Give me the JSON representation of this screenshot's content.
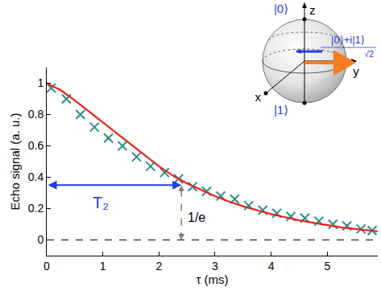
{
  "chart_data": {
    "type": "scatter",
    "x_label": "τ (ms)",
    "y_label": "Echo signal (a. u.)",
    "xlim": [
      0,
      5.9
    ],
    "ylim": [
      -0.1,
      1.1
    ],
    "xticks": [
      0,
      1,
      2,
      3,
      4,
      5
    ],
    "yticks": [
      0,
      0.2,
      0.4,
      0.6,
      0.8,
      1
    ],
    "grid": false,
    "baseline": 0,
    "series": [
      {
        "type": "scatter",
        "marker": "x",
        "color": "#2e8b8b",
        "x": [
          0.08,
          0.35,
          0.6,
          0.85,
          1.1,
          1.35,
          1.6,
          1.85,
          2.1,
          2.35,
          2.6,
          2.85,
          3.1,
          3.35,
          3.6,
          3.85,
          4.1,
          4.35,
          4.6,
          4.85,
          5.1,
          5.35,
          5.6,
          5.8
        ],
        "values": [
          0.97,
          0.9,
          0.8,
          0.72,
          0.65,
          0.6,
          0.53,
          0.47,
          0.43,
          0.39,
          0.34,
          0.31,
          0.28,
          0.26,
          0.22,
          0.19,
          0.17,
          0.15,
          0.14,
          0.12,
          0.1,
          0.09,
          0.07,
          0.06
        ]
      },
      {
        "type": "line",
        "line_style": "solid",
        "color": "#e8231c",
        "x": [
          0,
          0.25,
          0.5,
          0.75,
          1.0,
          1.25,
          1.5,
          1.75,
          2.0,
          2.25,
          2.5,
          2.75,
          3.0,
          3.25,
          3.5,
          3.75,
          4.0,
          4.25,
          4.5,
          4.75,
          5.0,
          5.25,
          5.5,
          5.75,
          5.9
        ],
        "values": [
          1.0,
          0.955,
          0.89,
          0.82,
          0.75,
          0.68,
          0.61,
          0.54,
          0.47,
          0.41,
          0.36,
          0.32,
          0.28,
          0.245,
          0.215,
          0.19,
          0.165,
          0.145,
          0.125,
          0.11,
          0.095,
          0.08,
          0.07,
          0.06,
          0.055
        ]
      }
    ],
    "annotations": [
      {
        "text": "T₂",
        "x": 2.4,
        "y": 0.35,
        "color": "#1f3fe0",
        "line_style": "solid",
        "orientation": "horizontal"
      },
      {
        "text": "1/e",
        "x": 2.4,
        "y": 0.35,
        "color": "#808080",
        "line_style": "dashed",
        "orientation": "vertical"
      }
    ],
    "inset": {
      "labels": {
        "north": "|0⟩",
        "south": "|1⟩",
        "z": "z",
        "x": "x",
        "y": "y",
        "state_numerator": "|0⟩+i|1⟩",
        "state_denominator": "√2"
      }
    }
  }
}
